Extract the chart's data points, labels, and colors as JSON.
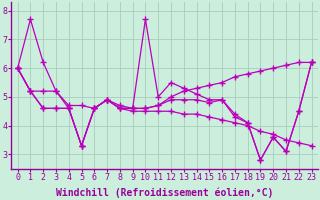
{
  "xlabel": "Windchill (Refroidissement éolien,°C)",
  "x": [
    0,
    1,
    2,
    3,
    4,
    5,
    6,
    7,
    8,
    9,
    10,
    11,
    12,
    13,
    14,
    15,
    16,
    17,
    18,
    19,
    20,
    21,
    22,
    23
  ],
  "series": [
    [
      6.0,
      7.7,
      6.2,
      5.2,
      4.6,
      3.3,
      4.6,
      4.9,
      4.6,
      4.6,
      7.7,
      5.0,
      5.5,
      5.3,
      5.1,
      4.9,
      4.9,
      4.3,
      4.1,
      2.8,
      3.6,
      3.1,
      4.5,
      6.2
    ],
    [
      6.0,
      5.2,
      5.2,
      5.2,
      4.7,
      4.7,
      4.6,
      4.9,
      4.7,
      4.6,
      4.6,
      4.7,
      5.0,
      5.2,
      5.3,
      5.4,
      5.5,
      5.7,
      5.8,
      5.9,
      6.0,
      6.1,
      6.2,
      6.2
    ],
    [
      6.0,
      5.2,
      4.6,
      4.6,
      4.6,
      3.3,
      4.6,
      4.9,
      4.6,
      4.6,
      4.6,
      4.7,
      4.9,
      4.9,
      4.9,
      4.8,
      4.9,
      4.4,
      4.1,
      2.8,
      3.6,
      3.1,
      4.5,
      6.2
    ],
    [
      6.0,
      5.2,
      4.6,
      4.6,
      4.6,
      3.3,
      4.6,
      4.9,
      4.6,
      4.5,
      4.5,
      4.5,
      4.5,
      4.4,
      4.4,
      4.3,
      4.2,
      4.1,
      4.0,
      3.8,
      3.7,
      3.5,
      3.4,
      3.3
    ]
  ],
  "line_color": "#bb00bb",
  "bg_color": "#cceedd",
  "grid_color": "#aaccbb",
  "ylim": [
    2.5,
    8.3
  ],
  "xlim_min": -0.5,
  "xlim_max": 23.5,
  "yticks": [
    3,
    4,
    5,
    6,
    7,
    8
  ],
  "xticks": [
    0,
    1,
    2,
    3,
    4,
    5,
    6,
    7,
    8,
    9,
    10,
    11,
    12,
    13,
    14,
    15,
    16,
    17,
    18,
    19,
    20,
    21,
    22,
    23
  ],
  "marker": "+",
  "markersize": 4,
  "linewidth": 0.9,
  "tick_fontsize": 6,
  "xlabel_fontsize": 7,
  "label_color": "#990099"
}
